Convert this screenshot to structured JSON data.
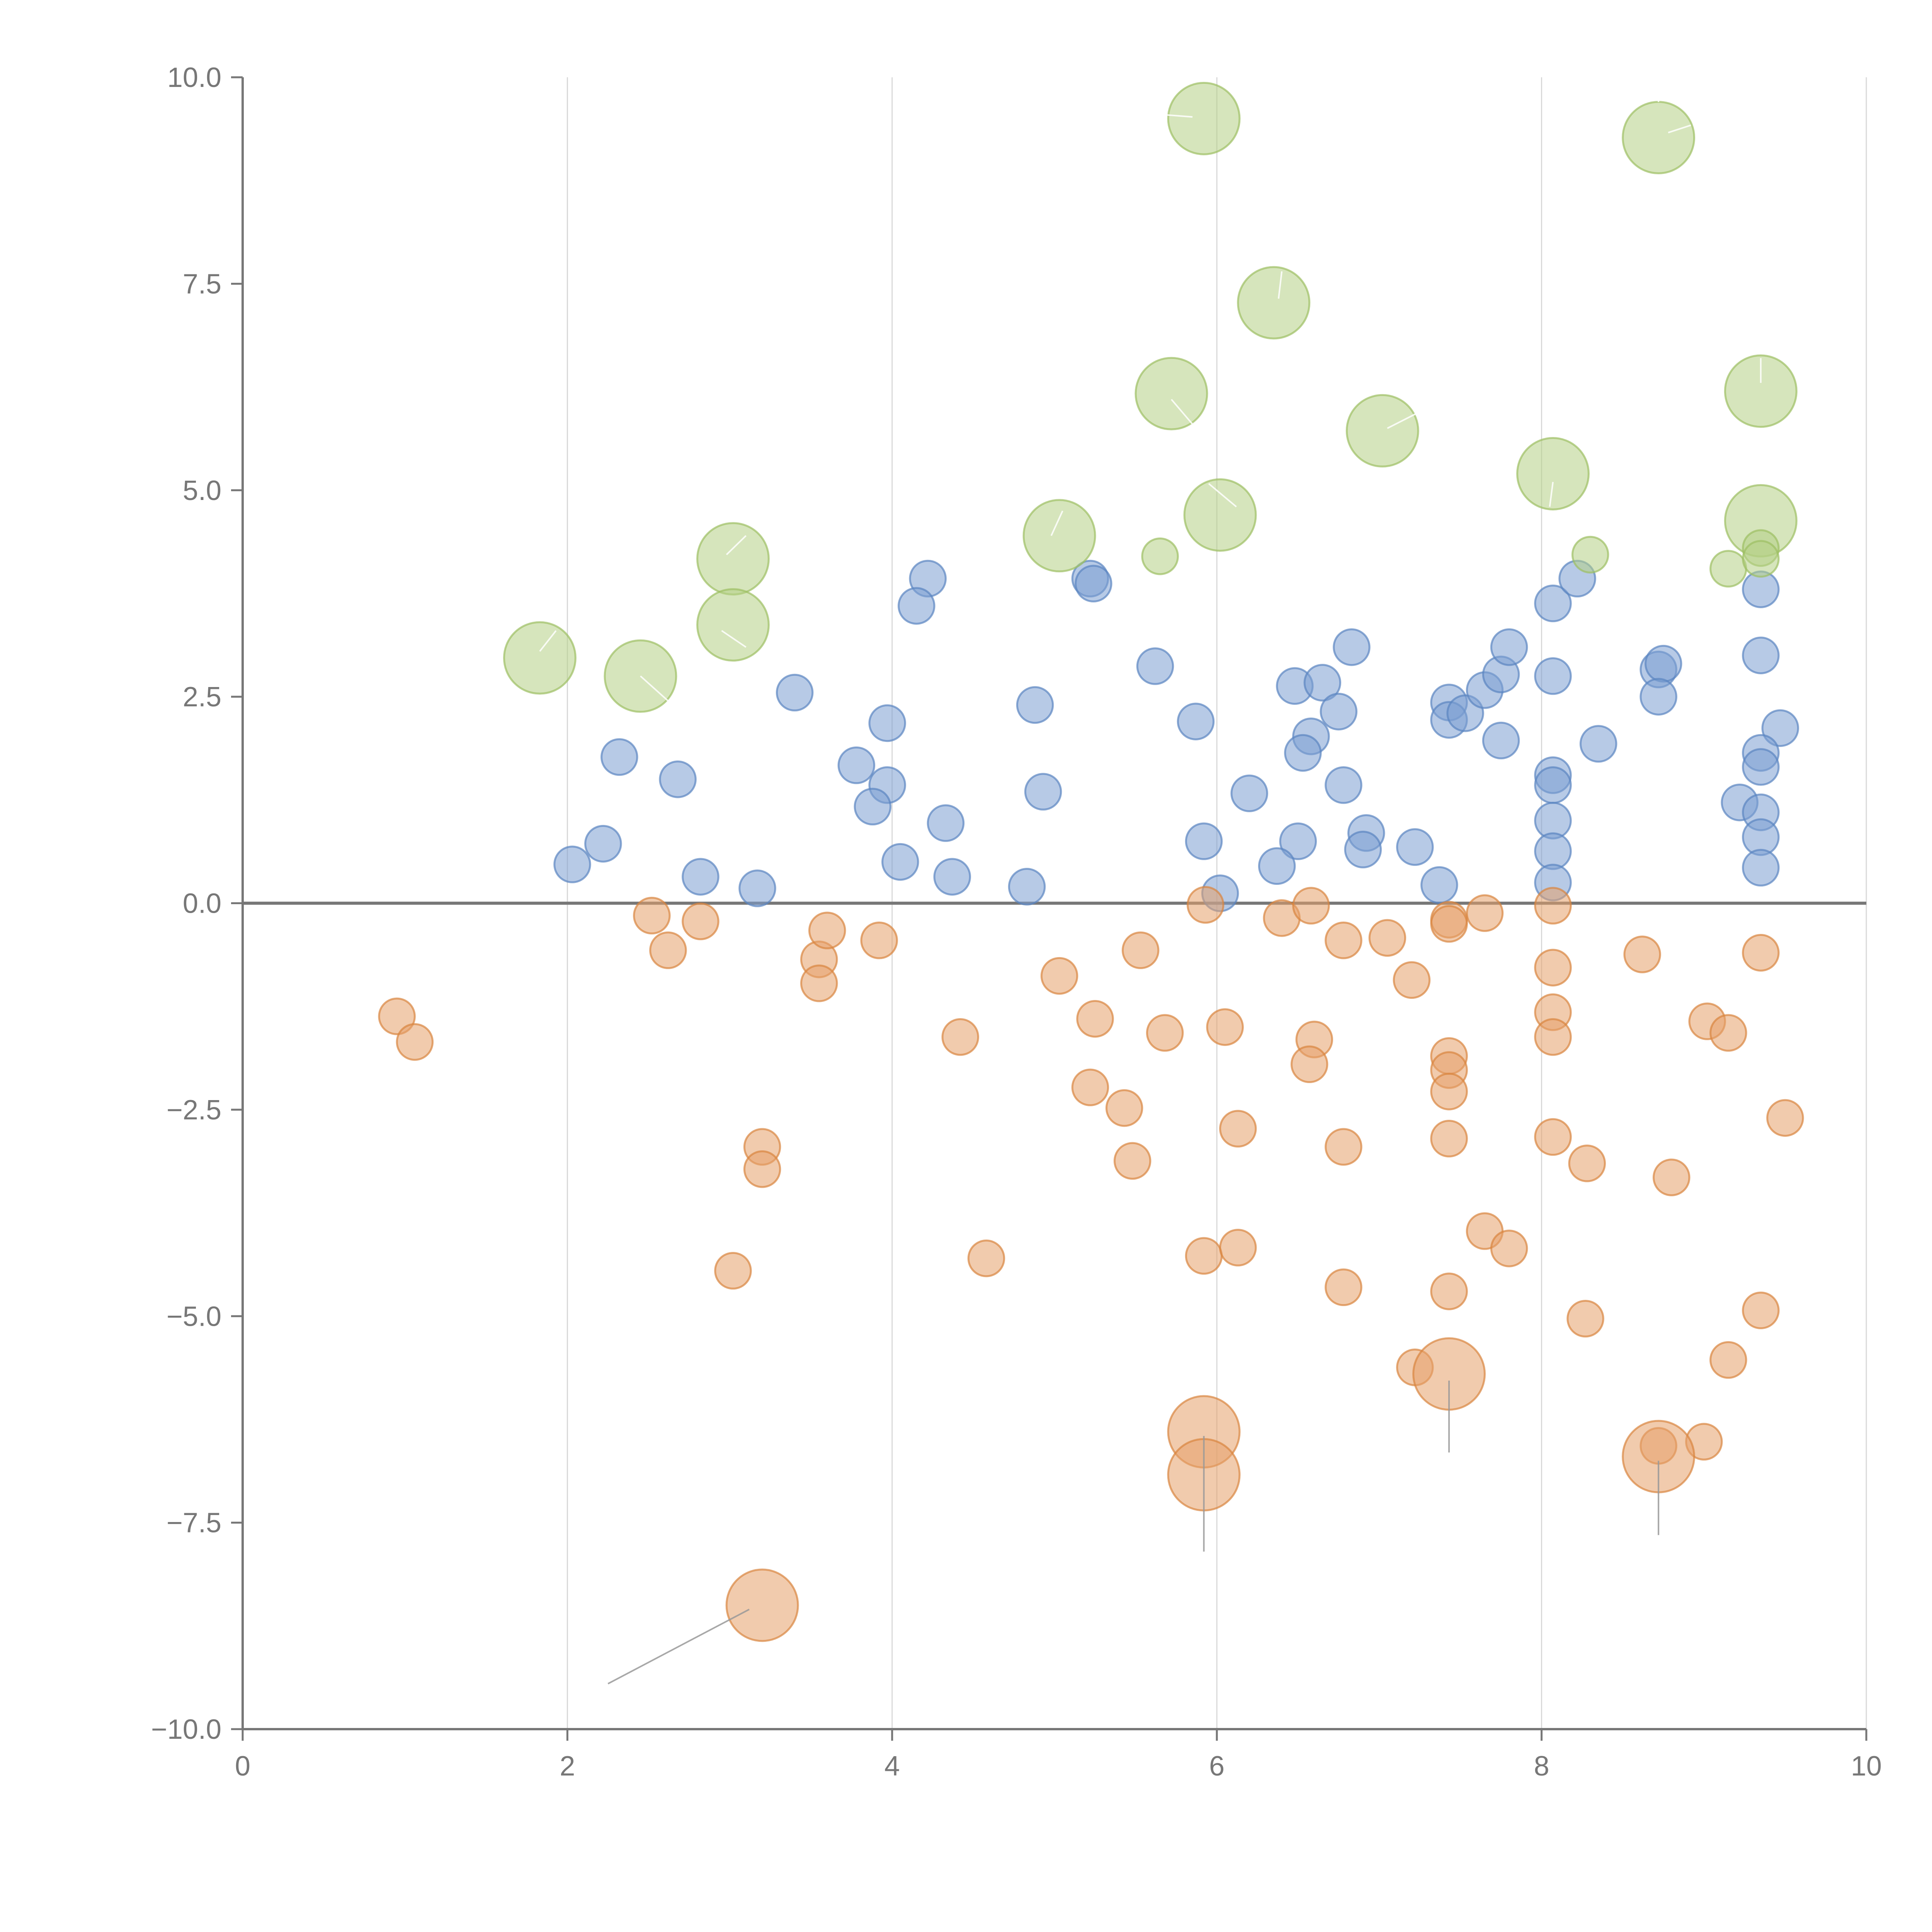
{
  "chart_data": {
    "type": "scatter",
    "title": "",
    "xlabel": "",
    "ylabel": "",
    "xlim": [
      0,
      10
    ],
    "ylim": [
      -10,
      10
    ],
    "x_ticks": [
      0,
      2,
      4,
      6,
      8,
      10
    ],
    "x_tick_labels": [
      "0",
      "2",
      "4",
      "6",
      "8",
      "10"
    ],
    "y_ticks": [
      10,
      7.5,
      5,
      2.5,
      0,
      -2.5,
      -5,
      -7.5,
      -10
    ],
    "y_tick_labels": [
      "10.0",
      "7.5",
      "5.0",
      "2.5",
      "0.0",
      "−2.5",
      "−5.0",
      "−7.5",
      "−10.0"
    ],
    "vertical_grid": true,
    "horizontal_grid": false,
    "zero_line": true,
    "legend": "none",
    "colors": {
      "green_fill": "#b5cf85",
      "green_stroke": "#9dbf63",
      "blue_fill": "#7b9fd2",
      "blue_stroke": "#5a84c0",
      "orange_fill": "#e6a06a",
      "orange_stroke": "#d9843f",
      "leader_light": "#ffffff",
      "leader_dark": "#999999"
    },
    "series": [
      {
        "name": "green",
        "fill": "#b5cf85",
        "stroke": "#9dbf63",
        "points": [
          {
            "x": 5.92,
            "y": 9.5,
            "r": 0.22
          },
          {
            "x": 8.72,
            "y": 9.27,
            "r": 0.22
          },
          {
            "x": 6.35,
            "y": 7.27,
            "r": 0.22
          },
          {
            "x": 5.72,
            "y": 6.17,
            "r": 0.22
          },
          {
            "x": 9.35,
            "y": 6.2,
            "r": 0.22
          },
          {
            "x": 7.02,
            "y": 5.72,
            "r": 0.22
          },
          {
            "x": 8.07,
            "y": 5.2,
            "r": 0.22
          },
          {
            "x": 6.02,
            "y": 4.7,
            "r": 0.22
          },
          {
            "x": 9.35,
            "y": 4.63,
            "r": 0.22
          },
          {
            "x": 5.03,
            "y": 4.45,
            "r": 0.22
          },
          {
            "x": 3.02,
            "y": 4.17,
            "r": 0.22
          },
          {
            "x": 3.02,
            "y": 3.37,
            "r": 0.22
          },
          {
            "x": 1.83,
            "y": 2.97,
            "r": 0.22
          },
          {
            "x": 2.45,
            "y": 2.75,
            "r": 0.22
          },
          {
            "x": 5.65,
            "y": 4.2,
            "r": 0.11
          },
          {
            "x": 8.3,
            "y": 4.22,
            "r": 0.11
          },
          {
            "x": 9.15,
            "y": 4.05,
            "r": 0.11
          },
          {
            "x": 9.35,
            "y": 4.3,
            "r": 0.11
          },
          {
            "x": 9.35,
            "y": 4.17,
            "r": 0.11
          }
        ],
        "leaders": [
          {
            "x1": 5.65,
            "y1": 9.55,
            "x2": 5.85,
            "y2": 9.52
          },
          {
            "x1": 8.72,
            "y1": 9.9,
            "x2": 8.72,
            "y2": 9.7
          },
          {
            "x1": 8.92,
            "y1": 9.42,
            "x2": 8.78,
            "y2": 9.33
          },
          {
            "x1": 6.4,
            "y1": 7.65,
            "x2": 6.38,
            "y2": 7.32
          },
          {
            "x1": 5.72,
            "y1": 6.1,
            "x2": 5.85,
            "y2": 5.8
          },
          {
            "x1": 9.35,
            "y1": 6.6,
            "x2": 9.35,
            "y2": 6.3
          },
          {
            "x1": 7.25,
            "y1": 5.95,
            "x2": 7.05,
            "y2": 5.75
          },
          {
            "x1": 8.07,
            "y1": 5.1,
            "x2": 8.05,
            "y2": 4.8
          },
          {
            "x1": 6.12,
            "y1": 4.8,
            "x2": 5.95,
            "y2": 5.08
          },
          {
            "x1": 5.05,
            "y1": 4.75,
            "x2": 4.98,
            "y2": 4.45
          },
          {
            "x1": 3.1,
            "y1": 4.45,
            "x2": 2.98,
            "y2": 4.22
          },
          {
            "x1": 2.95,
            "y1": 3.3,
            "x2": 3.1,
            "y2": 3.1
          },
          {
            "x1": 1.93,
            "y1": 3.3,
            "x2": 1.83,
            "y2": 3.05
          },
          {
            "x1": 2.45,
            "y1": 2.75,
            "x2": 2.62,
            "y2": 2.45
          }
        ]
      },
      {
        "name": "blue",
        "fill": "#7b9fd2",
        "stroke": "#5a84c0",
        "points": [
          {
            "x": 4.22,
            "y": 3.93,
            "r": 0.11
          },
          {
            "x": 4.15,
            "y": 3.6,
            "r": 0.11
          },
          {
            "x": 5.22,
            "y": 3.93,
            "r": 0.11
          },
          {
            "x": 5.24,
            "y": 3.87,
            "r": 0.11
          },
          {
            "x": 3.4,
            "y": 2.55,
            "r": 0.11
          },
          {
            "x": 2.32,
            "y": 1.77,
            "r": 0.11
          },
          {
            "x": 2.68,
            "y": 1.5,
            "r": 0.11
          },
          {
            "x": 3.78,
            "y": 1.67,
            "r": 0.11
          },
          {
            "x": 3.97,
            "y": 2.18,
            "r": 0.11
          },
          {
            "x": 3.97,
            "y": 1.43,
            "r": 0.11
          },
          {
            "x": 3.88,
            "y": 1.17,
            "r": 0.11
          },
          {
            "x": 2.03,
            "y": 0.47,
            "r": 0.11
          },
          {
            "x": 2.22,
            "y": 0.72,
            "r": 0.11
          },
          {
            "x": 2.82,
            "y": 0.32,
            "r": 0.11
          },
          {
            "x": 3.17,
            "y": 0.18,
            "r": 0.11
          },
          {
            "x": 4.05,
            "y": 0.5,
            "r": 0.11
          },
          {
            "x": 4.33,
            "y": 0.97,
            "r": 0.11
          },
          {
            "x": 4.37,
            "y": 0.32,
            "r": 0.11
          },
          {
            "x": 4.88,
            "y": 2.4,
            "r": 0.11
          },
          {
            "x": 4.93,
            "y": 1.35,
            "r": 0.11
          },
          {
            "x": 4.83,
            "y": 0.2,
            "r": 0.11
          },
          {
            "x": 5.62,
            "y": 2.87,
            "r": 0.11
          },
          {
            "x": 5.87,
            "y": 2.2,
            "r": 0.11
          },
          {
            "x": 5.92,
            "y": 0.75,
            "r": 0.11
          },
          {
            "x": 6.02,
            "y": 0.12,
            "r": 0.11
          },
          {
            "x": 6.2,
            "y": 1.33,
            "r": 0.11
          },
          {
            "x": 6.48,
            "y": 2.63,
            "r": 0.11
          },
          {
            "x": 6.65,
            "y": 2.67,
            "r": 0.11
          },
          {
            "x": 6.83,
            "y": 3.1,
            "r": 0.11
          },
          {
            "x": 6.58,
            "y": 2.02,
            "r": 0.11
          },
          {
            "x": 6.53,
            "y": 1.82,
            "r": 0.11
          },
          {
            "x": 6.75,
            "y": 2.32,
            "r": 0.11
          },
          {
            "x": 6.78,
            "y": 1.43,
            "r": 0.11
          },
          {
            "x": 6.5,
            "y": 0.75,
            "r": 0.11
          },
          {
            "x": 6.37,
            "y": 0.45,
            "r": 0.11
          },
          {
            "x": 6.92,
            "y": 0.85,
            "r": 0.11
          },
          {
            "x": 6.9,
            "y": 0.65,
            "r": 0.11
          },
          {
            "x": 7.22,
            "y": 0.68,
            "r": 0.11
          },
          {
            "x": 7.37,
            "y": 0.22,
            "r": 0.11
          },
          {
            "x": 7.43,
            "y": 2.43,
            "r": 0.11
          },
          {
            "x": 7.43,
            "y": 2.22,
            "r": 0.11
          },
          {
            "x": 7.53,
            "y": 2.3,
            "r": 0.11
          },
          {
            "x": 7.65,
            "y": 2.58,
            "r": 0.11
          },
          {
            "x": 7.75,
            "y": 2.77,
            "r": 0.11
          },
          {
            "x": 7.8,
            "y": 3.1,
            "r": 0.11
          },
          {
            "x": 7.75,
            "y": 1.97,
            "r": 0.11
          },
          {
            "x": 8.07,
            "y": 3.63,
            "r": 0.11
          },
          {
            "x": 8.22,
            "y": 3.93,
            "r": 0.11
          },
          {
            "x": 8.07,
            "y": 2.75,
            "r": 0.11
          },
          {
            "x": 8.07,
            "y": 1.55,
            "r": 0.11
          },
          {
            "x": 8.07,
            "y": 1.43,
            "r": 0.11
          },
          {
            "x": 8.07,
            "y": 1.0,
            "r": 0.11
          },
          {
            "x": 8.07,
            "y": 0.63,
            "r": 0.11
          },
          {
            "x": 8.07,
            "y": 0.25,
            "r": 0.11
          },
          {
            "x": 8.35,
            "y": 1.93,
            "r": 0.11
          },
          {
            "x": 8.72,
            "y": 2.83,
            "r": 0.11
          },
          {
            "x": 8.75,
            "y": 2.9,
            "r": 0.11
          },
          {
            "x": 8.72,
            "y": 2.5,
            "r": 0.11
          },
          {
            "x": 9.35,
            "y": 3.8,
            "r": 0.11
          },
          {
            "x": 9.35,
            "y": 3.0,
            "r": 0.11
          },
          {
            "x": 9.47,
            "y": 2.12,
            "r": 0.11
          },
          {
            "x": 9.35,
            "y": 1.82,
            "r": 0.11
          },
          {
            "x": 9.35,
            "y": 1.65,
            "r": 0.11
          },
          {
            "x": 9.22,
            "y": 1.22,
            "r": 0.11
          },
          {
            "x": 9.35,
            "y": 1.1,
            "r": 0.11
          },
          {
            "x": 9.35,
            "y": 0.8,
            "r": 0.11
          },
          {
            "x": 9.35,
            "y": 0.43,
            "r": 0.11
          }
        ],
        "leaders": []
      },
      {
        "name": "orange",
        "fill": "#e6a06a",
        "stroke": "#d9843f",
        "points": [
          {
            "x": 0.95,
            "y": -1.37,
            "r": 0.11
          },
          {
            "x": 1.06,
            "y": -1.68,
            "r": 0.11
          },
          {
            "x": 2.52,
            "y": -0.15,
            "r": 0.11
          },
          {
            "x": 2.62,
            "y": -0.57,
            "r": 0.11
          },
          {
            "x": 2.82,
            "y": -0.22,
            "r": 0.11
          },
          {
            "x": 3.02,
            "y": -4.45,
            "r": 0.11
          },
          {
            "x": 3.2,
            "y": -2.95,
            "r": 0.11
          },
          {
            "x": 3.2,
            "y": -3.22,
            "r": 0.11
          },
          {
            "x": 3.55,
            "y": -0.68,
            "r": 0.11
          },
          {
            "x": 3.55,
            "y": -0.97,
            "r": 0.11
          },
          {
            "x": 3.6,
            "y": -0.33,
            "r": 0.11
          },
          {
            "x": 3.92,
            "y": -0.45,
            "r": 0.11
          },
          {
            "x": 4.42,
            "y": -1.62,
            "r": 0.11
          },
          {
            "x": 4.58,
            "y": -4.3,
            "r": 0.11
          },
          {
            "x": 5.03,
            "y": -0.88,
            "r": 0.11
          },
          {
            "x": 5.25,
            "y": -1.4,
            "r": 0.11
          },
          {
            "x": 5.22,
            "y": -2.23,
            "r": 0.11
          },
          {
            "x": 5.43,
            "y": -2.48,
            "r": 0.11
          },
          {
            "x": 5.48,
            "y": -3.12,
            "r": 0.11
          },
          {
            "x": 5.53,
            "y": -0.57,
            "r": 0.11
          },
          {
            "x": 5.68,
            "y": -1.57,
            "r": 0.11
          },
          {
            "x": 5.93,
            "y": -0.02,
            "r": 0.11
          },
          {
            "x": 6.05,
            "y": -1.5,
            "r": 0.11
          },
          {
            "x": 6.13,
            "y": -2.73,
            "r": 0.11
          },
          {
            "x": 5.92,
            "y": -4.27,
            "r": 0.11
          },
          {
            "x": 6.13,
            "y": -4.17,
            "r": 0.11
          },
          {
            "x": 6.4,
            "y": -0.18,
            "r": 0.11
          },
          {
            "x": 6.58,
            "y": -0.03,
            "r": 0.11
          },
          {
            "x": 6.6,
            "y": -1.65,
            "r": 0.11
          },
          {
            "x": 6.57,
            "y": -1.95,
            "r": 0.11
          },
          {
            "x": 6.78,
            "y": -0.45,
            "r": 0.11
          },
          {
            "x": 6.78,
            "y": -2.95,
            "r": 0.11
          },
          {
            "x": 6.78,
            "y": -4.65,
            "r": 0.11
          },
          {
            "x": 7.05,
            "y": -0.42,
            "r": 0.11
          },
          {
            "x": 7.2,
            "y": -0.93,
            "r": 0.11
          },
          {
            "x": 7.43,
            "y": -0.2,
            "r": 0.11
          },
          {
            "x": 7.43,
            "y": -0.25,
            "r": 0.11
          },
          {
            "x": 7.65,
            "y": -0.12,
            "r": 0.11
          },
          {
            "x": 7.43,
            "y": -1.85,
            "r": 0.11
          },
          {
            "x": 7.43,
            "y": -2.02,
            "r": 0.11
          },
          {
            "x": 7.43,
            "y": -2.28,
            "r": 0.11
          },
          {
            "x": 7.43,
            "y": -2.85,
            "r": 0.11
          },
          {
            "x": 7.43,
            "y": -4.7,
            "r": 0.11
          },
          {
            "x": 7.65,
            "y": -3.97,
            "r": 0.11
          },
          {
            "x": 7.8,
            "y": -4.18,
            "r": 0.11
          },
          {
            "x": 7.22,
            "y": -5.62,
            "r": 0.11
          },
          {
            "x": 8.07,
            "y": -0.03,
            "r": 0.11
          },
          {
            "x": 8.07,
            "y": -0.78,
            "r": 0.11
          },
          {
            "x": 8.07,
            "y": -1.32,
            "r": 0.11
          },
          {
            "x": 8.07,
            "y": -1.62,
            "r": 0.11
          },
          {
            "x": 8.07,
            "y": -2.83,
            "r": 0.11
          },
          {
            "x": 8.28,
            "y": -3.15,
            "r": 0.11
          },
          {
            "x": 8.27,
            "y": -5.03,
            "r": 0.11
          },
          {
            "x": 8.62,
            "y": -0.62,
            "r": 0.11
          },
          {
            "x": 8.8,
            "y": -3.32,
            "r": 0.11
          },
          {
            "x": 8.72,
            "y": -6.57,
            "r": 0.11
          },
          {
            "x": 9.0,
            "y": -6.52,
            "r": 0.11
          },
          {
            "x": 9.02,
            "y": -1.43,
            "r": 0.11
          },
          {
            "x": 9.15,
            "y": -1.57,
            "r": 0.11
          },
          {
            "x": 9.35,
            "y": -0.6,
            "r": 0.11
          },
          {
            "x": 9.5,
            "y": -2.6,
            "r": 0.11
          },
          {
            "x": 9.35,
            "y": -4.93,
            "r": 0.11
          },
          {
            "x": 9.15,
            "y": -5.53,
            "r": 0.11
          },
          {
            "x": 5.92,
            "y": -6.4,
            "r": 0.22
          },
          {
            "x": 5.92,
            "y": -6.92,
            "r": 0.22
          },
          {
            "x": 7.43,
            "y": -5.7,
            "r": 0.22
          },
          {
            "x": 8.72,
            "y": -6.7,
            "r": 0.22
          },
          {
            "x": 3.2,
            "y": -8.5,
            "r": 0.22
          }
        ],
        "leaders": [
          {
            "x1": 2.25,
            "y1": -9.45,
            "x2": 3.12,
            "y2": -8.55
          },
          {
            "x1": 5.92,
            "y1": -6.45,
            "x2": 5.92,
            "y2": -7.85
          },
          {
            "x1": 7.43,
            "y1": -5.78,
            "x2": 7.43,
            "y2": -6.65
          },
          {
            "x1": 8.72,
            "y1": -6.75,
            "x2": 8.72,
            "y2": -7.65
          }
        ]
      }
    ]
  }
}
